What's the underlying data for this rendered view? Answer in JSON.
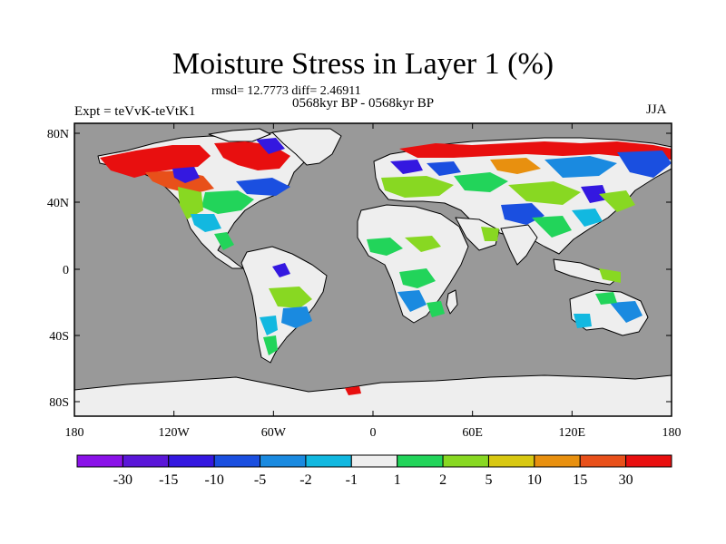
{
  "title": "Moisture Stress in Layer 1 (%)",
  "stats_line": "rmsd= 12.7773 diff= 2.46911",
  "period_line": "0568kyr BP - 0568kyr BP",
  "expt_label": "Expt = teVvK-teVtK1",
  "season": "JJA",
  "colors": {
    "ocean": "#999999",
    "neutral_land": "#eeeeee"
  },
  "map_axes": {
    "lat_ticks": [
      "80N",
      "40N",
      "0",
      "40S",
      "80S"
    ],
    "lon_ticks": [
      "180",
      "120W",
      "60W",
      "0",
      "60E",
      "120E",
      "180"
    ]
  },
  "colorbar": {
    "colors": [
      "#8a12e8",
      "#5a16d8",
      "#3418e0",
      "#1a4fe0",
      "#1a8ae0",
      "#12b8e0",
      "#eeeeee",
      "#22d45a",
      "#88d822",
      "#d8c812",
      "#e8900f",
      "#e8501a",
      "#e80f0f"
    ],
    "labels": [
      "-30",
      "-15",
      "-10",
      "-5",
      "-2",
      "-1",
      "1",
      "2",
      "5",
      "10",
      "15",
      "30"
    ]
  }
}
